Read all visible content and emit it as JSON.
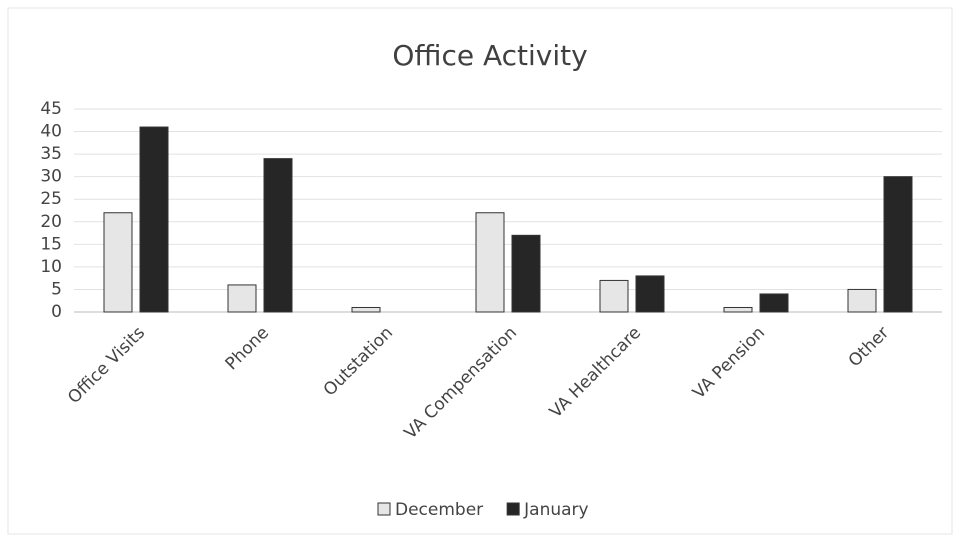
{
  "chart_data": {
    "type": "bar",
    "title": "Office Activity",
    "categories": [
      "Office Visits",
      "Phone",
      "Outstation",
      "VA Compensation",
      "VA Healthcare",
      "VA Pension",
      "Other"
    ],
    "series": [
      {
        "name": "December",
        "color": "#e6e6e6",
        "values": [
          22,
          6,
          1,
          22,
          7,
          1,
          5
        ]
      },
      {
        "name": "January",
        "color": "#262626",
        "values": [
          41,
          34,
          0,
          17,
          8,
          4,
          30
        ]
      }
    ],
    "ylim": [
      0,
      45
    ],
    "yticks": [
      0,
      5,
      10,
      15,
      20,
      25,
      30,
      35,
      40,
      45
    ],
    "grid": true,
    "legend": "bottom"
  }
}
